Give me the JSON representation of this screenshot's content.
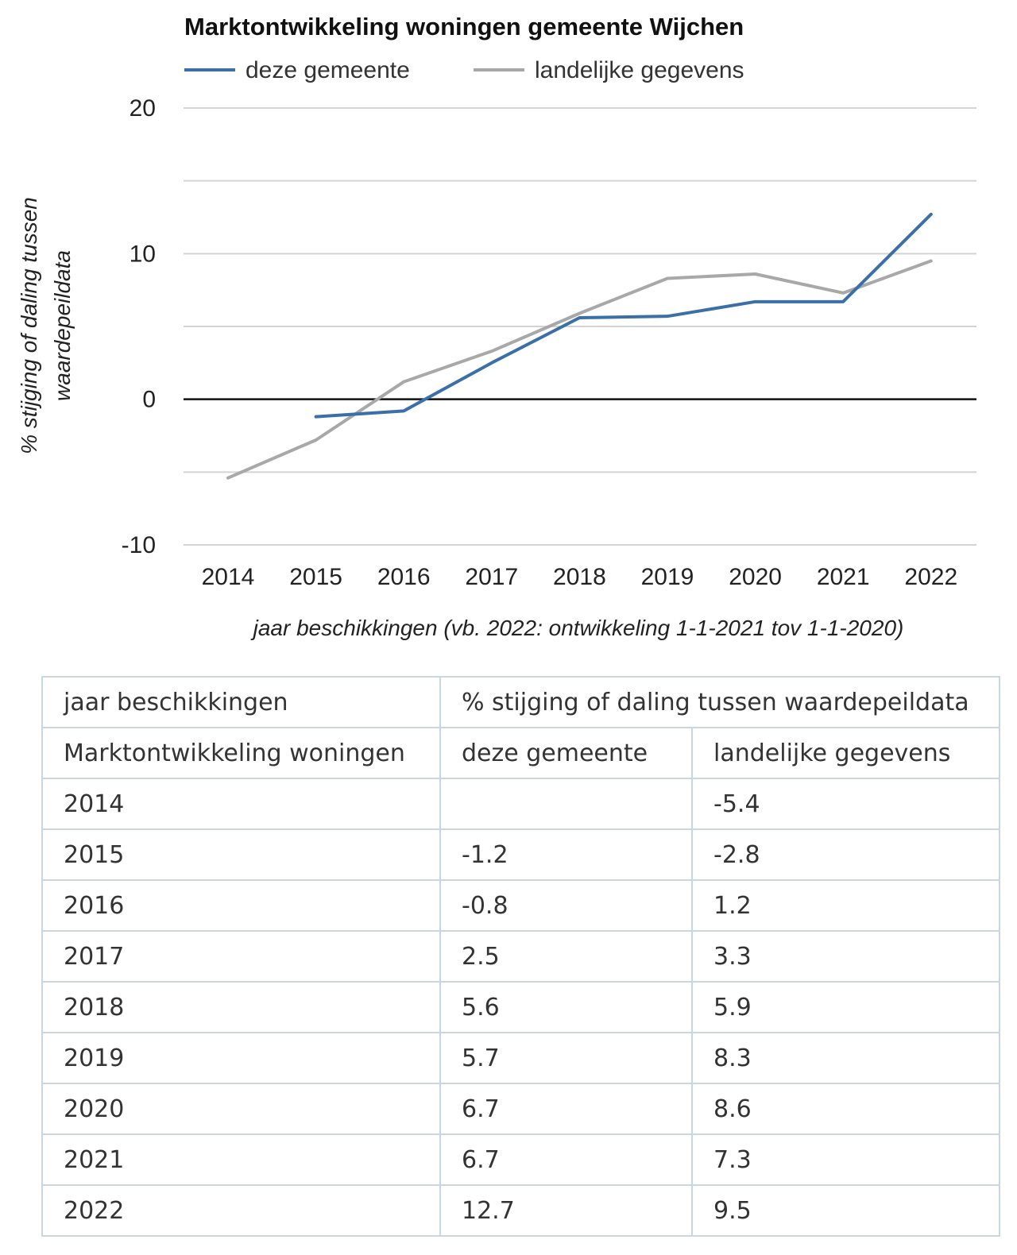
{
  "chart_data": {
    "type": "line",
    "title": "Marktontwikkeling woningen gemeente Wijchen",
    "xlabel": "jaar beschikkingen (vb. 2022: ontwikkeling 1-1-2021 tov 1-1-2020)",
    "ylabel_lines": [
      "% stijging of daling tussen",
      "waardepeildata"
    ],
    "categories": [
      "2014",
      "2015",
      "2016",
      "2017",
      "2018",
      "2019",
      "2020",
      "2021",
      "2022"
    ],
    "y_ticks": [
      "20",
      "10",
      "0",
      "-10"
    ],
    "ylim": [
      -10,
      20
    ],
    "gridlines_at": [
      -10,
      -5,
      0,
      5,
      10,
      15,
      20
    ],
    "legend_position": "top",
    "series": [
      {
        "name": "deze gemeente",
        "color": "#3a6fa8",
        "values": [
          null,
          -1.2,
          -0.8,
          2.5,
          5.6,
          5.7,
          6.7,
          6.7,
          12.7
        ]
      },
      {
        "name": "landelijke gegevens",
        "color": "#a8a8a8",
        "values": [
          -5.4,
          -2.8,
          1.2,
          3.3,
          5.9,
          8.3,
          8.6,
          7.3,
          9.5
        ]
      }
    ]
  },
  "table": {
    "header_row1": [
      "jaar beschikkingen",
      "% stijging of daling tussen waardepeildata"
    ],
    "header_row2": [
      "Marktontwikkeling woningen",
      "deze gemeente",
      "landelijke gegevens"
    ],
    "rows": [
      [
        "2014",
        "",
        "-5.4"
      ],
      [
        "2015",
        "-1.2",
        "-2.8"
      ],
      [
        "2016",
        "-0.8",
        "1.2"
      ],
      [
        "2017",
        "2.5",
        "3.3"
      ],
      [
        "2018",
        "5.6",
        "5.9"
      ],
      [
        "2019",
        "5.7",
        "8.3"
      ],
      [
        "2020",
        "6.7",
        "8.6"
      ],
      [
        "2021",
        "6.7",
        "7.3"
      ],
      [
        "2022",
        "12.7",
        "9.5"
      ]
    ]
  }
}
